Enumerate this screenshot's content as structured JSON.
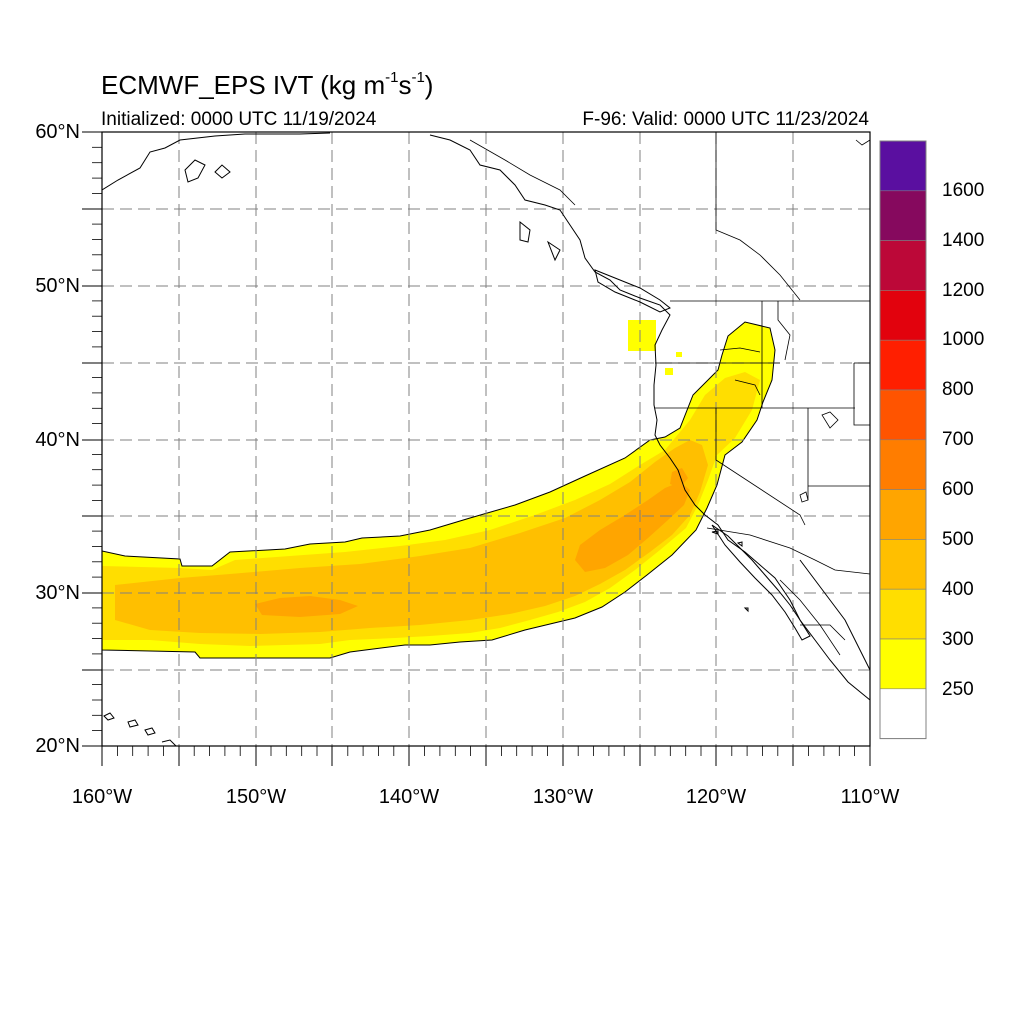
{
  "title": {
    "main": "ECMWF_EPS IVT (kg m",
    "exp1": "-1",
    "mid": "s",
    "exp2": "-1",
    "close": ")"
  },
  "subtitle": {
    "left": "Initialized: 0000 UTC 11/19/2024",
    "right": "F-96: Valid: 0000 UTC 11/23/2024"
  },
  "map": {
    "lon_range": [
      -160,
      -110
    ],
    "lat_range": [
      20,
      60
    ],
    "lat_labels": [
      "60°N",
      "50°N",
      "40°N",
      "30°N",
      "20°N"
    ],
    "lon_labels": [
      "160°W",
      "150°W",
      "140°W",
      "130°W",
      "120°W",
      "110°W"
    ],
    "grid": "dashed",
    "grid_step_deg": 5
  },
  "colorbar": {
    "labels": [
      "1600",
      "1400",
      "1200",
      "1000",
      "800",
      "700",
      "600",
      "500",
      "400",
      "300",
      "250"
    ],
    "colors": [
      "#5a0fa0",
      "#86095e",
      "#bc0838",
      "#e2020d",
      "#ff1f00",
      "#ff5400",
      "#ff7d00",
      "#ffa500",
      "#ffbf00",
      "#ffde00",
      "#ffff00",
      "#ffffff"
    ]
  },
  "ivt_field": {
    "levels_colors": {
      "250": "#ffff00",
      "300": "#ffde00",
      "400": "#ffbf00",
      "500": "#ffa500"
    }
  }
}
